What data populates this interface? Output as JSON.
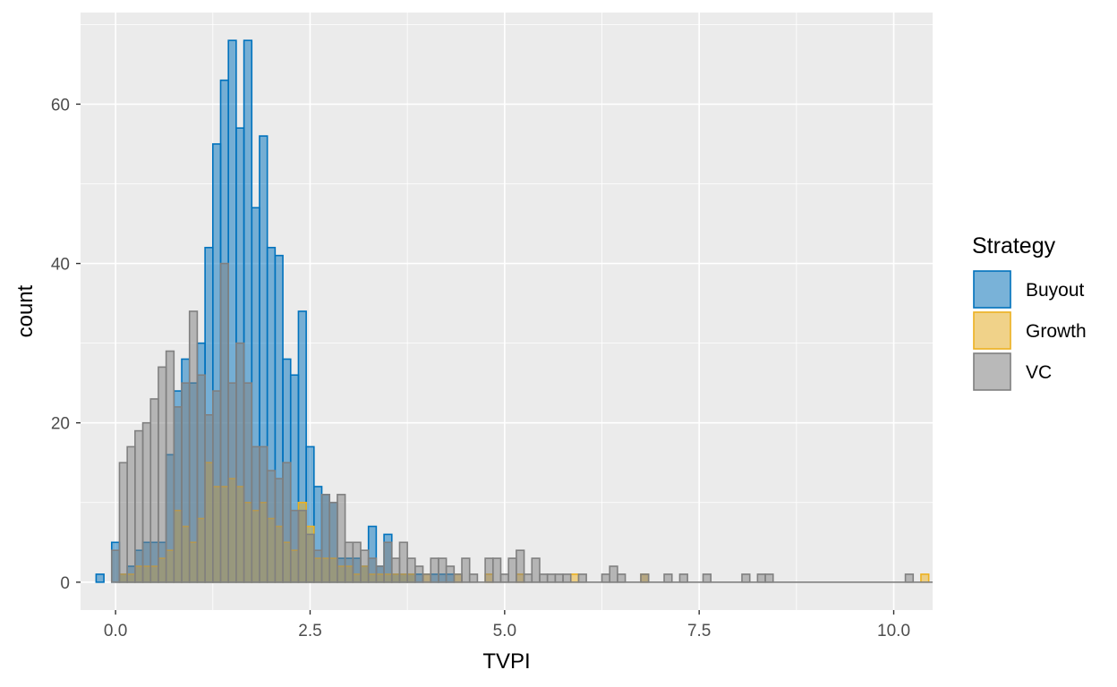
{
  "chart_data": {
    "type": "bar",
    "subtype": "overlapping histogram",
    "xlabel": "TVPI",
    "ylabel": "count",
    "xlim": [
      -0.45,
      10.5
    ],
    "ylim": [
      -3.5,
      71.5
    ],
    "x_ticks": [
      0,
      2.5,
      5,
      7.5,
      10
    ],
    "x_tick_labels": [
      "0.0",
      "2.5",
      "5.0",
      "7.5",
      "10.0"
    ],
    "y_ticks": [
      0,
      20,
      40,
      60
    ],
    "y_tick_labels": [
      "0",
      "20",
      "40",
      "60"
    ],
    "grid": true,
    "bin_width": 0.1,
    "legend": {
      "title": "Strategy",
      "position": "right",
      "entries": [
        "Buyout",
        "Growth",
        "VC"
      ]
    },
    "series": [
      {
        "name": "Buyout",
        "fill": "#0072BD",
        "stroke": "#0072BD",
        "opacity": 0.5,
        "bins": [
          [
            -0.2,
            1
          ],
          [
            0.0,
            5
          ],
          [
            0.1,
            1
          ],
          [
            0.2,
            2
          ],
          [
            0.3,
            4
          ],
          [
            0.4,
            5
          ],
          [
            0.5,
            5
          ],
          [
            0.6,
            5
          ],
          [
            0.7,
            16
          ],
          [
            0.8,
            24
          ],
          [
            0.9,
            28
          ],
          [
            1.0,
            25
          ],
          [
            1.1,
            30
          ],
          [
            1.2,
            42
          ],
          [
            1.3,
            55
          ],
          [
            1.4,
            63
          ],
          [
            1.5,
            68
          ],
          [
            1.6,
            57
          ],
          [
            1.7,
            68
          ],
          [
            1.8,
            47
          ],
          [
            1.9,
            56
          ],
          [
            2.0,
            42
          ],
          [
            2.1,
            41
          ],
          [
            2.2,
            28
          ],
          [
            2.3,
            26
          ],
          [
            2.4,
            34
          ],
          [
            2.5,
            17
          ],
          [
            2.6,
            12
          ],
          [
            2.7,
            11
          ],
          [
            2.8,
            10
          ],
          [
            2.9,
            3
          ],
          [
            3.0,
            3
          ],
          [
            3.1,
            3
          ],
          [
            3.2,
            2
          ],
          [
            3.3,
            7
          ],
          [
            3.4,
            2
          ],
          [
            3.5,
            6
          ],
          [
            3.6,
            1
          ],
          [
            3.7,
            1
          ],
          [
            3.8,
            1
          ],
          [
            3.9,
            1
          ],
          [
            4.1,
            1
          ],
          [
            4.2,
            1
          ],
          [
            4.3,
            1
          ]
        ]
      },
      {
        "name": "Growth",
        "fill": "#EDB120",
        "stroke": "#EDB120",
        "opacity": 0.5,
        "bins": [
          [
            0.0,
            0
          ],
          [
            0.1,
            1
          ],
          [
            0.2,
            1
          ],
          [
            0.3,
            2
          ],
          [
            0.4,
            2
          ],
          [
            0.5,
            2
          ],
          [
            0.6,
            3
          ],
          [
            0.7,
            4
          ],
          [
            0.8,
            9
          ],
          [
            0.9,
            7
          ],
          [
            1.0,
            5
          ],
          [
            1.1,
            8
          ],
          [
            1.2,
            15
          ],
          [
            1.3,
            12
          ],
          [
            1.4,
            12
          ],
          [
            1.5,
            13
          ],
          [
            1.6,
            12
          ],
          [
            1.7,
            10
          ],
          [
            1.8,
            9
          ],
          [
            1.9,
            10
          ],
          [
            2.0,
            8
          ],
          [
            2.1,
            7
          ],
          [
            2.2,
            5
          ],
          [
            2.3,
            4
          ],
          [
            2.4,
            10
          ],
          [
            2.5,
            7
          ],
          [
            2.6,
            3
          ],
          [
            2.7,
            3
          ],
          [
            2.8,
            3
          ],
          [
            2.9,
            2
          ],
          [
            3.0,
            2
          ],
          [
            3.1,
            1
          ],
          [
            3.2,
            2
          ],
          [
            3.3,
            1
          ],
          [
            3.4,
            1
          ],
          [
            3.5,
            1
          ],
          [
            3.6,
            1
          ],
          [
            3.7,
            1
          ],
          [
            3.8,
            1
          ],
          [
            4.0,
            1
          ],
          [
            4.4,
            1
          ],
          [
            4.8,
            1
          ],
          [
            5.2,
            1
          ],
          [
            5.9,
            1
          ],
          [
            6.8,
            1
          ],
          [
            10.4,
            1
          ]
        ]
      },
      {
        "name": "VC",
        "fill": "#808080",
        "stroke": "#808080",
        "opacity": 0.5,
        "bins": [
          [
            0.0,
            4
          ],
          [
            0.1,
            15
          ],
          [
            0.2,
            17
          ],
          [
            0.3,
            19
          ],
          [
            0.4,
            20
          ],
          [
            0.5,
            23
          ],
          [
            0.6,
            27
          ],
          [
            0.7,
            29
          ],
          [
            0.8,
            22
          ],
          [
            0.9,
            25
          ],
          [
            1.0,
            34
          ],
          [
            1.1,
            26
          ],
          [
            1.2,
            21
          ],
          [
            1.3,
            24
          ],
          [
            1.4,
            40
          ],
          [
            1.5,
            25
          ],
          [
            1.6,
            30
          ],
          [
            1.7,
            25
          ],
          [
            1.8,
            17
          ],
          [
            1.9,
            17
          ],
          [
            2.0,
            14
          ],
          [
            2.1,
            13
          ],
          [
            2.2,
            15
          ],
          [
            2.3,
            9
          ],
          [
            2.4,
            9
          ],
          [
            2.5,
            6
          ],
          [
            2.6,
            4
          ],
          [
            2.7,
            11
          ],
          [
            2.8,
            10
          ],
          [
            2.9,
            11
          ],
          [
            3.0,
            5
          ],
          [
            3.1,
            5
          ],
          [
            3.2,
            4
          ],
          [
            3.3,
            3
          ],
          [
            3.4,
            2
          ],
          [
            3.5,
            5
          ],
          [
            3.6,
            3
          ],
          [
            3.7,
            5
          ],
          [
            3.8,
            3
          ],
          [
            3.9,
            2
          ],
          [
            4.0,
            1
          ],
          [
            4.1,
            3
          ],
          [
            4.2,
            3
          ],
          [
            4.3,
            2
          ],
          [
            4.4,
            1
          ],
          [
            4.5,
            3
          ],
          [
            4.6,
            1
          ],
          [
            4.8,
            3
          ],
          [
            4.9,
            3
          ],
          [
            5.0,
            1
          ],
          [
            5.1,
            3
          ],
          [
            5.2,
            4
          ],
          [
            5.3,
            1
          ],
          [
            5.4,
            3
          ],
          [
            5.5,
            1
          ],
          [
            5.6,
            1
          ],
          [
            5.7,
            1
          ],
          [
            5.8,
            1
          ],
          [
            6.0,
            1
          ],
          [
            6.3,
            1
          ],
          [
            6.4,
            2
          ],
          [
            6.5,
            1
          ],
          [
            6.8,
            1
          ],
          [
            7.1,
            1
          ],
          [
            7.3,
            1
          ],
          [
            7.6,
            1
          ],
          [
            8.1,
            1
          ],
          [
            8.3,
            1
          ],
          [
            8.4,
            1
          ],
          [
            10.2,
            1
          ]
        ],
        "baseline": [
          0.0,
          10.5
        ]
      }
    ]
  }
}
